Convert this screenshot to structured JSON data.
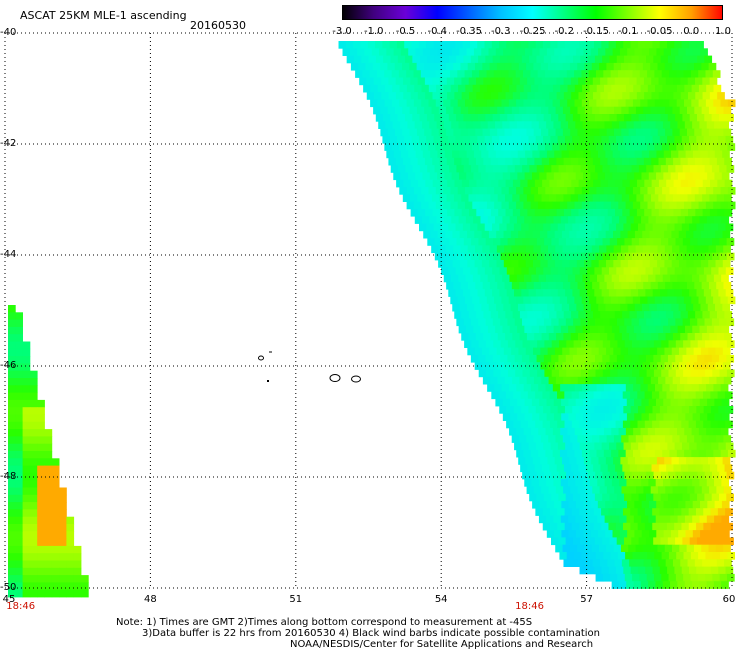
{
  "header": {
    "title": "ASCAT 25KM MLE-1 ascending",
    "date": "20160530"
  },
  "colorbar": {
    "labels": [
      "-3.0",
      "-1.0",
      "-0.5",
      "-0.4",
      "-0.35",
      "-0.3",
      "-0.25",
      "-0.2",
      "-0.15",
      "-0.1",
      "-0.05",
      "0.0",
      "1.0"
    ],
    "colors": [
      "#000000",
      "#40007f",
      "#6a00d8",
      "#0000ff",
      "#0060ff",
      "#00c0ff",
      "#00ffff",
      "#00ff80",
      "#00ff00",
      "#80ff00",
      "#ffff00",
      "#ffa000",
      "#ff0000"
    ]
  },
  "map": {
    "lat_labels": [
      "-40",
      "-42",
      "-44",
      "-46",
      "-48",
      "-50"
    ],
    "lon_labels": [
      "45",
      "48",
      "51",
      "54",
      "57",
      "60"
    ],
    "lon_range": [
      45,
      60
    ],
    "lat_range": [
      -50,
      -40
    ],
    "time_labels": [
      {
        "text": "18:46",
        "lon": 45.2
      },
      {
        "text": "18:46",
        "lon": 55.7
      }
    ]
  },
  "notes": {
    "line1": "Note: 1) Times are GMT 2)Times along bottom correspond to measurement at -45S",
    "line2": "3)Data buffer is 22 hrs from 20160530 4) Black wind barbs indicate possible contamination",
    "line3": "NOAA/NESDIS/Center for Satellite Applications and Research"
  }
}
